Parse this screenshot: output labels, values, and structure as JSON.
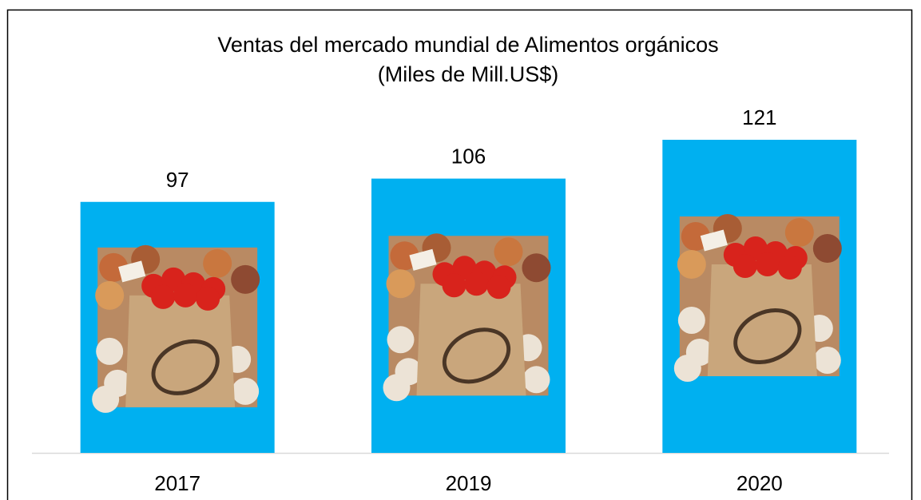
{
  "chart_data": {
    "type": "bar",
    "title": "Ventas del mercado mundial de Alimentos orgánicos",
    "subtitle": "(Miles de Mill.US$)",
    "categories": [
      "2017",
      "2019",
      "2020"
    ],
    "values": [
      97,
      106,
      121
    ],
    "color": "#00b0f0"
  }
}
